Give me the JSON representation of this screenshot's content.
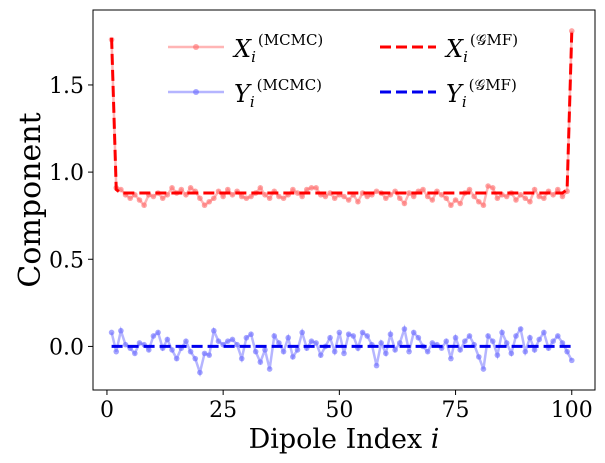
{
  "chart_data": {
    "type": "line",
    "title": "",
    "xlabel": "Dipole Index ",
    "xlabel_var": "i",
    "ylabel": "Component",
    "xlim": [
      -3,
      105
    ],
    "ylim": [
      -0.25,
      1.93
    ],
    "xticks": [
      0,
      25,
      50,
      75,
      100
    ],
    "xtick_labels": [
      "0",
      "25",
      "50",
      "75",
      "100"
    ],
    "yticks": [
      0.0,
      0.5,
      1.0,
      1.5
    ],
    "ytick_labels": [
      "0.0",
      "0.5",
      "1.0",
      "1.5"
    ],
    "legend_location": "upper-center",
    "colors": {
      "x_mcmc": "#ff6b6b",
      "y_mcmc": "#6b6bff",
      "x_gmf": "#ff0000",
      "y_gmf": "#0000ee"
    },
    "series": [
      {
        "name": "X_i^(MCMC)",
        "legend_main": "X",
        "legend_sub": "i",
        "legend_sup": "(MCMC)",
        "style": "solid-markers",
        "color": "#ff6b6b",
        "x": [
          1,
          2,
          3,
          4,
          5,
          6,
          7,
          8,
          9,
          10,
          11,
          12,
          13,
          14,
          15,
          16,
          17,
          18,
          19,
          20,
          21,
          22,
          23,
          24,
          25,
          26,
          27,
          28,
          29,
          30,
          31,
          32,
          33,
          34,
          35,
          36,
          37,
          38,
          39,
          40,
          41,
          42,
          43,
          44,
          45,
          46,
          47,
          48,
          49,
          50,
          51,
          52,
          53,
          54,
          55,
          56,
          57,
          58,
          59,
          60,
          61,
          62,
          63,
          64,
          65,
          66,
          67,
          68,
          69,
          70,
          71,
          72,
          73,
          74,
          75,
          76,
          77,
          78,
          79,
          80,
          81,
          82,
          83,
          84,
          85,
          86,
          87,
          88,
          89,
          90,
          91,
          92,
          93,
          94,
          95,
          96,
          97,
          98,
          99,
          100
        ],
        "values": [
          1.76,
          0.91,
          0.9,
          0.87,
          0.85,
          0.87,
          0.84,
          0.81,
          0.87,
          0.86,
          0.88,
          0.85,
          0.87,
          0.91,
          0.88,
          0.9,
          0.87,
          0.91,
          0.89,
          0.85,
          0.81,
          0.83,
          0.85,
          0.89,
          0.86,
          0.9,
          0.87,
          0.89,
          0.86,
          0.85,
          0.86,
          0.88,
          0.91,
          0.87,
          0.85,
          0.89,
          0.86,
          0.85,
          0.87,
          0.9,
          0.88,
          0.86,
          0.9,
          0.91,
          0.91,
          0.87,
          0.86,
          0.88,
          0.85,
          0.87,
          0.86,
          0.84,
          0.87,
          0.83,
          0.88,
          0.86,
          0.87,
          0.89,
          0.88,
          0.85,
          0.87,
          0.89,
          0.85,
          0.82,
          0.88,
          0.86,
          0.89,
          0.9,
          0.86,
          0.84,
          0.89,
          0.87,
          0.85,
          0.81,
          0.84,
          0.82,
          0.88,
          0.9,
          0.86,
          0.83,
          0.81,
          0.92,
          0.91,
          0.85,
          0.87,
          0.86,
          0.88,
          0.84,
          0.87,
          0.85,
          0.83,
          0.9,
          0.86,
          0.85,
          0.89,
          0.87,
          0.9,
          0.86,
          0.89,
          1.81
        ]
      },
      {
        "name": "Y_i^(MCMC)",
        "legend_main": "Y",
        "legend_sub": "i",
        "legend_sup": "(MCMC)",
        "style": "solid-markers",
        "color": "#6b6bff",
        "x": [
          1,
          2,
          3,
          4,
          5,
          6,
          7,
          8,
          9,
          10,
          11,
          12,
          13,
          14,
          15,
          16,
          17,
          18,
          19,
          20,
          21,
          22,
          23,
          24,
          25,
          26,
          27,
          28,
          29,
          30,
          31,
          32,
          33,
          34,
          35,
          36,
          37,
          38,
          39,
          40,
          41,
          42,
          43,
          44,
          45,
          46,
          47,
          48,
          49,
          50,
          51,
          52,
          53,
          54,
          55,
          56,
          57,
          58,
          59,
          60,
          61,
          62,
          63,
          64,
          65,
          66,
          67,
          68,
          69,
          70,
          71,
          72,
          73,
          74,
          75,
          76,
          77,
          78,
          79,
          80,
          81,
          82,
          83,
          84,
          85,
          86,
          87,
          88,
          89,
          90,
          91,
          92,
          93,
          94,
          95,
          96,
          97,
          98,
          99,
          100
        ],
        "values": [
          0.08,
          -0.03,
          0.09,
          0.01,
          -0.01,
          -0.04,
          0.02,
          0.01,
          -0.02,
          0.06,
          0.08,
          -0.01,
          0.04,
          -0.02,
          -0.07,
          -0.01,
          0.03,
          -0.03,
          -0.07,
          -0.15,
          -0.04,
          -0.05,
          0.09,
          0.03,
          0.01,
          0.03,
          0.04,
          0.01,
          -0.07,
          0.05,
          0.07,
          -0.03,
          -0.09,
          -0.02,
          -0.13,
          0.06,
          0.02,
          -0.03,
          0.05,
          -0.06,
          -0.02,
          0.08,
          -0.01,
          0.03,
          0.02,
          -0.05,
          0.0,
          0.05,
          -0.03,
          0.08,
          -0.04,
          0.07,
          0.06,
          -0.01,
          0.08,
          0.06,
          0.01,
          -0.11,
          0.02,
          -0.04,
          0.07,
          -0.02,
          0.02,
          0.1,
          -0.03,
          0.08,
          0.05,
          0.0,
          -0.03,
          0.02,
          0.01,
          -0.01,
          0.03,
          -0.07,
          0.05,
          -0.02,
          0.03,
          0.06,
          0.01,
          -0.06,
          -0.13,
          0.06,
          0.03,
          -0.05,
          0.08,
          0.02,
          -0.04,
          0.06,
          0.1,
          -0.03,
          0.05,
          -0.02,
          0.04,
          0.08,
          -0.01,
          0.03,
          0.06,
          0.02,
          -0.03,
          -0.08
        ]
      },
      {
        "name": "X_i^(G_MF)",
        "legend_main": "X",
        "legend_sub": "i",
        "legend_sup": "(𝒢MF)",
        "style": "dashed",
        "color": "#ff0000",
        "x": [
          1,
          2,
          3,
          10,
          20,
          30,
          40,
          50,
          60,
          70,
          80,
          90,
          98,
          99,
          100
        ],
        "values": [
          1.77,
          0.9,
          0.88,
          0.88,
          0.88,
          0.88,
          0.88,
          0.88,
          0.88,
          0.88,
          0.88,
          0.88,
          0.88,
          0.9,
          1.8
        ]
      },
      {
        "name": "Y_i^(G_MF)",
        "legend_main": "Y",
        "legend_sub": "i",
        "legend_sup": "(𝒢MF)",
        "style": "dashed",
        "color": "#0000ee",
        "x": [
          1,
          100
        ],
        "values": [
          0.0,
          0.0
        ]
      }
    ]
  }
}
